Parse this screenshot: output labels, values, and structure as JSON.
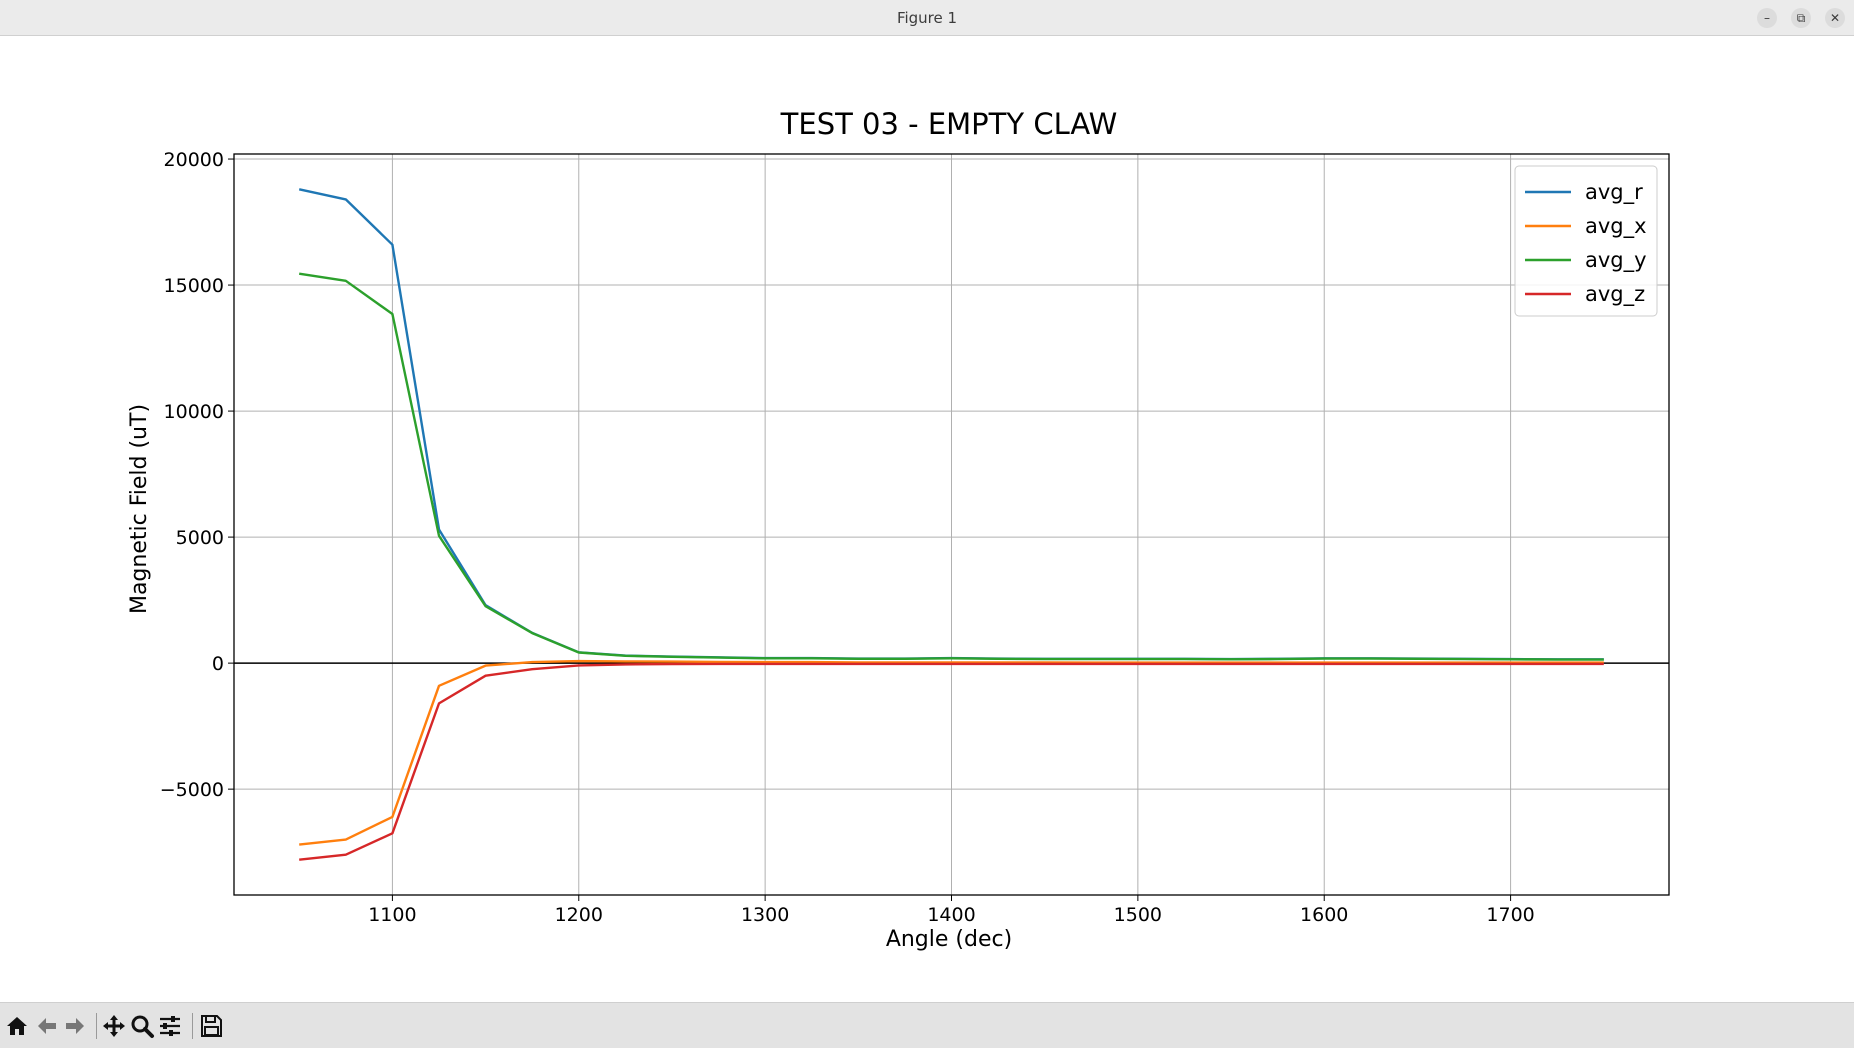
{
  "window": {
    "title": "Figure 1",
    "minimize_icon": "minimize-icon",
    "maximize_icon": "restore-icon",
    "close_icon": "close-icon"
  },
  "toolbar": {
    "buttons": [
      "home-icon",
      "back-arrow-icon",
      "forward-arrow-icon",
      "pan-move-icon",
      "zoom-magnifier-icon",
      "configure-sliders-icon",
      "save-floppy-icon"
    ]
  },
  "colors": {
    "avg_r": "#1f77b4",
    "avg_x": "#ff7f0e",
    "avg_y": "#2ca02c",
    "avg_z": "#d62728",
    "zero_line": "#000000",
    "grid": "#b0b0b0"
  },
  "chart_data": {
    "type": "line",
    "title": "TEST 03 - EMPTY CLAW",
    "xlabel": "Angle (dec)",
    "ylabel": "Magnetic Field (uT)",
    "xlim": [
      1015,
      1785
    ],
    "ylim": [
      -9200,
      20200
    ],
    "xticks": [
      1100,
      1200,
      1300,
      1400,
      1500,
      1600,
      1700
    ],
    "yticks": [
      -5000,
      0,
      5000,
      10000,
      15000,
      20000
    ],
    "xtick_labels": [
      "1100",
      "1200",
      "1300",
      "1400",
      "1500",
      "1600",
      "1700"
    ],
    "ytick_labels": [
      "−5000",
      "0",
      "5000",
      "10000",
      "15000",
      "20000"
    ],
    "grid": true,
    "zero_line": true,
    "legend_position": "top-right",
    "x": [
      1050,
      1075,
      1100,
      1125,
      1150,
      1175,
      1200,
      1225,
      1250,
      1275,
      1300,
      1325,
      1350,
      1375,
      1400,
      1425,
      1450,
      1475,
      1500,
      1525,
      1550,
      1575,
      1600,
      1625,
      1650,
      1675,
      1700,
      1725,
      1750
    ],
    "series": [
      {
        "name": "avg_r",
        "values": [
          18800,
          18400,
          16600,
          5300,
          2300,
          1200,
          430,
          300,
          260,
          230,
          200,
          200,
          180,
          180,
          200,
          180,
          170,
          170,
          170,
          170,
          160,
          170,
          190,
          190,
          180,
          170,
          160,
          150,
          150
        ]
      },
      {
        "name": "avg_x",
        "values": [
          -7200,
          -7000,
          -6100,
          -900,
          -100,
          40,
          80,
          70,
          60,
          50,
          40,
          40,
          30,
          30,
          30,
          30,
          30,
          20,
          20,
          20,
          20,
          20,
          20,
          20,
          20,
          20,
          20,
          20,
          20
        ]
      },
      {
        "name": "avg_y",
        "values": [
          15450,
          15170,
          13850,
          5050,
          2260,
          1190,
          420,
          290,
          250,
          220,
          190,
          190,
          170,
          170,
          190,
          170,
          160,
          160,
          160,
          160,
          150,
          160,
          180,
          180,
          170,
          160,
          150,
          140,
          140
        ]
      },
      {
        "name": "avg_z",
        "values": [
          -7800,
          -7600,
          -6750,
          -1600,
          -500,
          -240,
          -90,
          -50,
          -40,
          -30,
          -30,
          -30,
          -30,
          -30,
          -30,
          -30,
          -30,
          -30,
          -30,
          -30,
          -30,
          -30,
          -30,
          -30,
          -30,
          -30,
          -30,
          -30,
          -30
        ]
      }
    ]
  }
}
